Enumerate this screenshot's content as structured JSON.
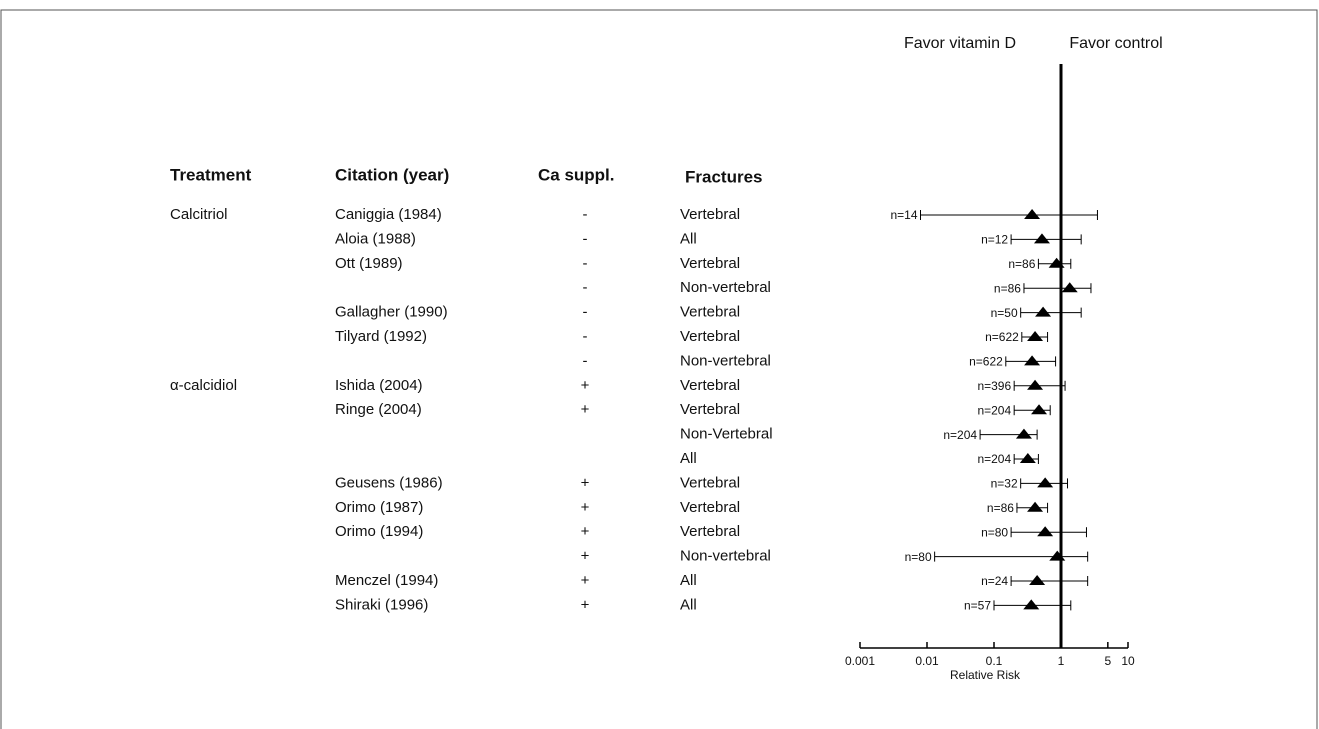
{
  "chart_data": {
    "type": "forest",
    "axis_label": "Relative Risk",
    "annotations": [
      "Favor vitamin D",
      "Favor control"
    ],
    "columns": [
      "Treatment",
      "Citation (year)",
      "Ca suppl.",
      "Fractures"
    ],
    "xscale": "log",
    "xlim": [
      0.001,
      10
    ],
    "xticks": [
      0.001,
      0.01,
      0.1,
      1,
      5,
      10
    ],
    "reference": 1,
    "color": "#000000",
    "rows": [
      {
        "treatment": "Calcitriol",
        "citation": "Caniggia (1984)",
        "ca": "-",
        "fracture": "Vertebral",
        "n_label": "n=14",
        "estimate": 0.37,
        "lower": 0.008,
        "upper": 3.5
      },
      {
        "citation": "Aloia (1988)",
        "ca": "-",
        "fracture": "All",
        "n_label": "n=12",
        "estimate": 0.52,
        "lower": 0.18,
        "upper": 2.0
      },
      {
        "citation": "Ott (1989)",
        "ca": "-",
        "fracture": "Vertebral",
        "n_label": "n=86",
        "estimate": 0.86,
        "lower": 0.46,
        "upper": 1.4
      },
      {
        "ca": "-",
        "fracture": "Non-vertebral",
        "n_label": "n=86",
        "estimate": 1.35,
        "lower": 0.28,
        "upper": 2.8
      },
      {
        "citation": "Gallagher (1990)",
        "ca": "-",
        "fracture": "Vertebral",
        "n_label": "n=50",
        "estimate": 0.54,
        "lower": 0.25,
        "upper": 2.0
      },
      {
        "citation": "Tilyard (1992)",
        "ca": "-",
        "fracture": "Vertebral",
        "n_label": "n=622",
        "estimate": 0.41,
        "lower": 0.26,
        "upper": 0.63
      },
      {
        "ca": "-",
        "fracture": "Non-vertebral",
        "n_label": "n=622",
        "estimate": 0.37,
        "lower": 0.15,
        "upper": 0.83
      },
      {
        "treatment": "α-calcidiol",
        "citation": "Ishida (2004)",
        "ca": "+",
        "fracture": "Vertebral",
        "n_label": "n=396",
        "estimate": 0.41,
        "lower": 0.2,
        "upper": 1.15
      },
      {
        "citation": "Ringe (2004)",
        "ca": "+",
        "fracture": "Vertebral",
        "n_label": "n=204",
        "estimate": 0.47,
        "lower": 0.2,
        "upper": 0.69
      },
      {
        "fracture": "Non-Vertebral",
        "n_label": "n=204",
        "estimate": 0.28,
        "lower": 0.062,
        "upper": 0.44
      },
      {
        "fracture": "All",
        "n_label": "n=204",
        "estimate": 0.32,
        "lower": 0.2,
        "upper": 0.46
      },
      {
        "citation": "Geusens (1986)",
        "ca": "+",
        "fracture": "Vertebral",
        "n_label": "n=32",
        "estimate": 0.58,
        "lower": 0.25,
        "upper": 1.25
      },
      {
        "citation": "Orimo (1987)",
        "ca": "+",
        "fracture": "Vertebral",
        "n_label": "n=86",
        "estimate": 0.41,
        "lower": 0.22,
        "upper": 0.63
      },
      {
        "citation": "Orimo (1994)",
        "ca": "+",
        "fracture": "Vertebral",
        "n_label": "n=80",
        "estimate": 0.58,
        "lower": 0.18,
        "upper": 2.4
      },
      {
        "ca": "+",
        "fracture": "Non-vertebral",
        "n_label": "n=80",
        "estimate": 0.88,
        "lower": 0.013,
        "upper": 2.5
      },
      {
        "citation": "Menczel (1994)",
        "ca": "+",
        "fracture": "All",
        "n_label": "n=24",
        "estimate": 0.44,
        "lower": 0.18,
        "upper": 2.5
      },
      {
        "citation": "Shiraki (1996)",
        "ca": "+",
        "fracture": "All",
        "n_label": "n=57",
        "estimate": 0.36,
        "lower": 0.1,
        "upper": 1.4
      }
    ]
  }
}
